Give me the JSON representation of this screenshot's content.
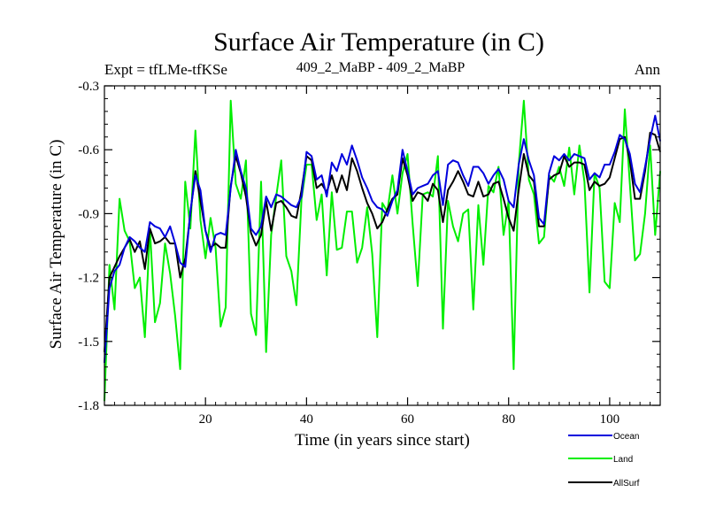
{
  "chart_data": {
    "type": "line",
    "title": "Surface Air Temperature (in C)",
    "subtitle_left": "Expt = tfLMe-tfKSe",
    "subtitle_center": "409_2_MaBP - 409_2_MaBP",
    "subtitle_right": "Ann",
    "xlabel": "Time (in years since start)",
    "ylabel": "Surface Air Temperature (in C)",
    "xlim": [
      0,
      110
    ],
    "ylim": [
      -1.8,
      -0.3
    ],
    "x_ticks": [
      20,
      40,
      60,
      80,
      100
    ],
    "x_tick_labels": [
      "20",
      "40",
      "60",
      "80",
      "100"
    ],
    "y_ticks": [
      -1.8,
      -1.5,
      -1.2,
      -0.9,
      -0.6,
      -0.3
    ],
    "y_tick_labels": [
      "-1.8",
      "-1.5",
      "-1.2",
      "-0.9",
      "-0.6",
      "-0.3"
    ],
    "x": [
      0,
      1,
      2,
      3,
      4,
      5,
      6,
      7,
      8,
      9,
      10,
      11,
      12,
      13,
      14,
      15,
      16,
      17,
      18,
      19,
      20,
      21,
      22,
      23,
      24,
      25,
      26,
      27,
      28,
      29,
      30,
      31,
      32,
      33,
      34,
      35,
      36,
      37,
      38,
      39,
      40,
      41,
      42,
      43,
      44,
      45,
      46,
      47,
      48,
      49,
      50,
      51,
      52,
      53,
      54,
      55,
      56,
      57,
      58,
      59,
      60,
      61,
      62,
      63,
      64,
      65,
      66,
      67,
      68,
      69,
      70,
      71,
      72,
      73,
      74,
      75,
      76,
      77,
      78,
      79,
      80,
      81,
      82,
      83,
      84,
      85,
      86,
      87,
      88,
      89,
      90,
      91,
      92,
      93,
      94,
      95,
      96,
      97,
      98,
      99,
      100,
      101,
      102,
      103,
      104,
      105,
      106,
      107,
      108,
      109,
      110
    ],
    "series": [
      {
        "name": "Land",
        "color": "#00ee00",
        "values": [
          -1.78,
          -1.14,
          -1.35,
          -0.83,
          -0.98,
          -1.03,
          -1.25,
          -1.2,
          -1.48,
          -0.97,
          -1.41,
          -1.32,
          -1.04,
          -1.18,
          -1.38,
          -1.63,
          -0.75,
          -0.97,
          -0.51,
          -0.93,
          -1.11,
          -0.92,
          -1.06,
          -1.43,
          -1.34,
          -0.37,
          -0.76,
          -0.83,
          -0.65,
          -1.37,
          -1.47,
          -0.75,
          -1.55,
          -1.0,
          -0.82,
          -0.65,
          -1.1,
          -1.17,
          -1.33,
          -0.83,
          -0.67,
          -0.67,
          -0.93,
          -0.81,
          -1.19,
          -0.8,
          -1.07,
          -1.06,
          -0.89,
          -0.89,
          -1.13,
          -1.06,
          -0.87,
          -1.09,
          -1.48,
          -0.85,
          -0.89,
          -0.72,
          -0.9,
          -0.71,
          -0.62,
          -0.95,
          -1.24,
          -0.81,
          -0.8,
          -0.82,
          -0.63,
          -1.44,
          -0.84,
          -0.96,
          -1.03,
          -0.9,
          -0.88,
          -1.35,
          -0.86,
          -1.14,
          -0.77,
          -0.8,
          -0.68,
          -1.0,
          -0.84,
          -1.63,
          -0.67,
          -0.37,
          -0.74,
          -0.81,
          -1.04,
          -1.01,
          -0.72,
          -0.75,
          -0.68,
          -0.77,
          -0.59,
          -0.81,
          -0.58,
          -0.75,
          -1.27,
          -0.71,
          -0.78,
          -1.22,
          -1.25,
          -0.85,
          -0.94,
          -0.41,
          -0.76,
          -1.12,
          -1.09,
          -0.9,
          -0.58,
          -1.0,
          -0.7
        ]
      },
      {
        "name": "AllSurf",
        "color": "#000000",
        "values": [
          -1.55,
          -1.2,
          -1.15,
          -1.1,
          -1.06,
          -1.02,
          -1.08,
          -1.03,
          -1.16,
          -0.97,
          -1.04,
          -1.03,
          -1.01,
          -1.04,
          -1.04,
          -1.2,
          -1.11,
          -0.9,
          -0.7,
          -0.84,
          -0.98,
          -1.06,
          -1.04,
          -1.06,
          -1.06,
          -0.77,
          -0.63,
          -0.71,
          -0.82,
          -0.99,
          -1.05,
          -1.0,
          -0.84,
          -0.98,
          -0.85,
          -0.84,
          -0.87,
          -0.91,
          -0.92,
          -0.79,
          -0.63,
          -0.65,
          -0.78,
          -0.76,
          -0.8,
          -0.72,
          -0.8,
          -0.72,
          -0.79,
          -0.64,
          -0.7,
          -0.78,
          -0.85,
          -0.9,
          -0.97,
          -0.94,
          -0.88,
          -0.83,
          -0.81,
          -0.64,
          -0.72,
          -0.84,
          -0.8,
          -0.81,
          -0.84,
          -0.76,
          -0.79,
          -0.94,
          -0.79,
          -0.75,
          -0.7,
          -0.75,
          -0.81,
          -0.82,
          -0.75,
          -0.82,
          -0.81,
          -0.76,
          -0.75,
          -0.83,
          -0.92,
          -0.98,
          -0.79,
          -0.62,
          -0.72,
          -0.75,
          -0.96,
          -0.96,
          -0.74,
          -0.72,
          -0.71,
          -0.63,
          -0.68,
          -0.66,
          -0.66,
          -0.67,
          -0.79,
          -0.75,
          -0.77,
          -0.76,
          -0.73,
          -0.64,
          -0.55,
          -0.54,
          -0.65,
          -0.83,
          -0.83,
          -0.7,
          -0.52,
          -0.53,
          -0.61
        ]
      },
      {
        "name": "Ocean",
        "color": "#0000dd",
        "values": [
          -1.6,
          -1.25,
          -1.17,
          -1.14,
          -1.06,
          -1.01,
          -1.03,
          -1.06,
          -1.08,
          -0.94,
          -0.96,
          -0.97,
          -1.01,
          -0.96,
          -1.04,
          -1.13,
          -1.15,
          -0.89,
          -0.72,
          -0.79,
          -0.98,
          -1.08,
          -1.0,
          -0.99,
          -1.0,
          -0.78,
          -0.6,
          -0.7,
          -0.78,
          -0.97,
          -1.0,
          -0.96,
          -0.82,
          -0.87,
          -0.81,
          -0.82,
          -0.84,
          -0.86,
          -0.87,
          -0.82,
          -0.61,
          -0.63,
          -0.74,
          -0.72,
          -0.82,
          -0.66,
          -0.7,
          -0.62,
          -0.67,
          -0.58,
          -0.65,
          -0.73,
          -0.78,
          -0.84,
          -0.87,
          -0.88,
          -0.91,
          -0.84,
          -0.79,
          -0.6,
          -0.7,
          -0.81,
          -0.78,
          -0.77,
          -0.76,
          -0.72,
          -0.7,
          -0.86,
          -0.67,
          -0.65,
          -0.66,
          -0.72,
          -0.77,
          -0.68,
          -0.68,
          -0.71,
          -0.76,
          -0.72,
          -0.69,
          -0.74,
          -0.84,
          -0.87,
          -0.67,
          -0.55,
          -0.65,
          -0.72,
          -0.92,
          -0.95,
          -0.71,
          -0.63,
          -0.65,
          -0.62,
          -0.65,
          -0.62,
          -0.63,
          -0.64,
          -0.74,
          -0.71,
          -0.73,
          -0.67,
          -0.67,
          -0.61,
          -0.53,
          -0.55,
          -0.62,
          -0.76,
          -0.8,
          -0.68,
          -0.55,
          -0.44,
          -0.56
        ]
      }
    ],
    "legend": [
      {
        "name": "Ocean",
        "color": "#0000dd"
      },
      {
        "name": "Land",
        "color": "#00ee00"
      },
      {
        "name": "AllSurf",
        "color": "#000000"
      }
    ]
  }
}
